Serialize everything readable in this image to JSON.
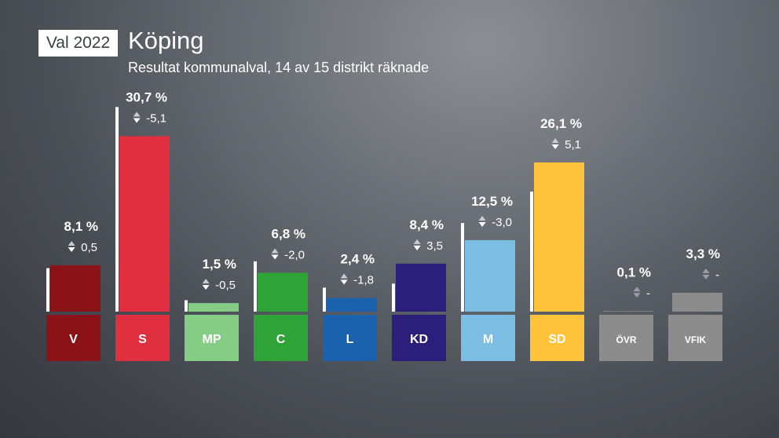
{
  "header": {
    "badge": "Val 2022",
    "title": "Köping",
    "subtitle": "Resultat kommunalval, 14 av 15 distrikt räknade"
  },
  "chart_data": {
    "type": "bar",
    "ylim": [
      0,
      32
    ],
    "categories": [
      "V",
      "S",
      "MP",
      "C",
      "L",
      "KD",
      "M",
      "SD",
      "ÖVR",
      "VFiK"
    ],
    "values": [
      8.1,
      30.7,
      1.5,
      6.8,
      2.4,
      8.4,
      12.5,
      26.1,
      0.1,
      3.3
    ],
    "previous": [
      7.6,
      35.8,
      2.0,
      8.8,
      4.2,
      4.9,
      15.5,
      21.0,
      null,
      null
    ],
    "value_labels": [
      "8,1 %",
      "30,7 %",
      "1,5 %",
      "6,8 %",
      "2,4 %",
      "8,4 %",
      "12,5 %",
      "26,1 %",
      "0,1 %",
      "3,3 %"
    ],
    "change_labels": [
      "0,5",
      "-5,1",
      "-0,5",
      "-2,0",
      "-1,8",
      "3,5",
      "-3,0",
      "5,1",
      "-",
      "-"
    ],
    "colors": [
      "#8b1318",
      "#e03040",
      "#85cc85",
      "#2fa338",
      "#1a62ad",
      "#2c1f7c",
      "#7cbde3",
      "#ffc23b",
      "#8c8c8c",
      "#8c8c8c"
    ],
    "label_colors": [
      "#8b1318",
      "#e03040",
      "#85cc85",
      "#2fa338",
      "#1a62ad",
      "#2c1f7c",
      "#7cbde3",
      "#ffc23b",
      "#8c8c8c",
      "#8c8c8c"
    ],
    "previous_marker_color": "#ffffff",
    "change_icon": "up-down-arrows-icon"
  }
}
